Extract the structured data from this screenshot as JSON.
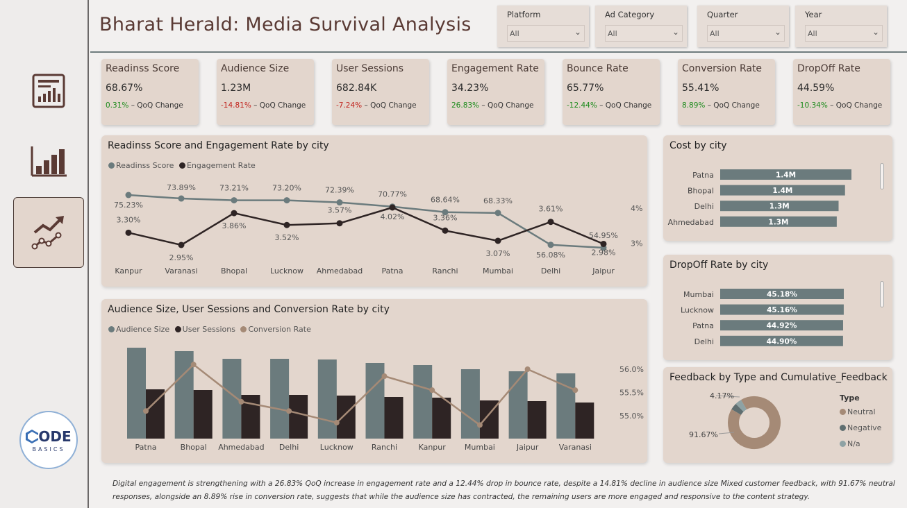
{
  "title": "Bharat Herald: Media Survival Analysis",
  "filters": [
    {
      "label": "Platform",
      "value": "All"
    },
    {
      "label": "Ad Category",
      "value": "All"
    },
    {
      "label": "Quarter",
      "value": "All"
    },
    {
      "label": "Year",
      "value": "All"
    }
  ],
  "kpis": [
    {
      "title": "Readinss Score",
      "value": "68.67%",
      "change": "0.31%",
      "change_label": " – QoQ Change",
      "trend": "pos"
    },
    {
      "title": "Audience Size",
      "value": "1.23M",
      "change": "-14.81%",
      "change_label": " – QoQ Change",
      "trend": "neg"
    },
    {
      "title": "User Sessions",
      "value": "682.84K",
      "change": "-7.24%",
      "change_label": " – QoQ Change",
      "trend": "neg"
    },
    {
      "title": "Engagement Rate",
      "value": "34.23%",
      "change": "26.83%",
      "change_label": " – QoQ Change",
      "trend": "pos"
    },
    {
      "title": "Bounce Rate",
      "value": "65.77%",
      "change": "-12.44%",
      "change_label": " – QoQ Change",
      "trend": "pos"
    },
    {
      "title": "Conversion Rate",
      "value": "55.41%",
      "change": "8.89%",
      "change_label": " – QoQ Change",
      "trend": "pos"
    },
    {
      "title": "DropOff Rate",
      "value": "44.59%",
      "change": "-10.34%",
      "change_label": " – QoQ Change",
      "trend": "pos"
    }
  ],
  "nav": [
    {
      "icon": "report-icon"
    },
    {
      "icon": "bar-chart-icon"
    },
    {
      "icon": "trend-chart-icon",
      "active": true
    }
  ],
  "logo": {
    "text_big": "ODE",
    "text_small": "BASICS"
  },
  "colors": {
    "teal": "#6b7b7d",
    "dark": "#2e2424",
    "tan": "#a58a76",
    "panel": "#e3d6cd"
  },
  "chart_data": [
    {
      "type": "line",
      "title": "Readinss Score and Engagement Rate by city",
      "categories": [
        "Kanpur",
        "Varanasi",
        "Bhopal",
        "Lucknow",
        "Ahmedabad",
        "Patna",
        "Ranchi",
        "Mumbai",
        "Delhi",
        "Jaipur"
      ],
      "series": [
        {
          "name": "Readinss Score",
          "values": [
            75.23,
            73.89,
            73.21,
            73.2,
            72.39,
            70.77,
            68.64,
            68.33,
            56.08,
            54.95
          ],
          "labels": [
            "75.23%",
            "73.89%",
            "73.21%",
            "73.20%",
            "72.39%",
            "70.77%",
            "68.64%",
            "68.33%",
            "56.08%",
            "54.95%"
          ]
        },
        {
          "name": "Engagement Rate",
          "values": [
            3.3,
            2.95,
            3.86,
            3.52,
            3.57,
            4.02,
            3.36,
            3.07,
            3.61,
            2.98
          ],
          "labels": [
            "3.30%",
            "2.95%",
            "3.86%",
            "3.52%",
            "3.57%",
            "4.02%",
            "3.36%",
            "3.07%",
            "3.61%",
            "2.98%"
          ],
          "axis": "right"
        }
      ],
      "y2_ticks": [
        "4%",
        "3%"
      ],
      "y2_tick_values": [
        4,
        3
      ]
    },
    {
      "type": "bar",
      "title": "Audience Size, User Sessions and Conversion Rate by city",
      "categories": [
        "Patna",
        "Bhopal",
        "Ahmedabad",
        "Delhi",
        "Lucknow",
        "Ranchi",
        "Kanpur",
        "Mumbai",
        "Jaipur",
        "Varanasi"
      ],
      "series": [
        {
          "name": "Audience Size",
          "values": [
            131000,
            126000,
            115000,
            115000,
            114000,
            109000,
            106000,
            100000,
            97000,
            94000
          ]
        },
        {
          "name": "User Sessions",
          "values": [
            71000,
            70000,
            63000,
            63000,
            62000,
            60000,
            59000,
            55000,
            54000,
            52000
          ]
        },
        {
          "name": "Conversion Rate",
          "values": [
            55.1,
            56.1,
            55.3,
            55.1,
            54.85,
            55.85,
            55.55,
            54.8,
            56.0,
            55.55
          ],
          "axis": "right"
        }
      ],
      "y2_ticks": [
        "56.0%",
        "55.5%",
        "55.0%"
      ],
      "y2_tick_values": [
        56.0,
        55.5,
        55.0
      ]
    },
    {
      "type": "bar",
      "orientation": "horizontal",
      "title": "Cost by city",
      "categories": [
        "Patna",
        "Bhopal",
        "Delhi",
        "Ahmedabad"
      ],
      "values": [
        1.43,
        1.36,
        1.29,
        1.27
      ],
      "labels": [
        "1.4M",
        "1.4M",
        "1.3M",
        "1.3M"
      ]
    },
    {
      "type": "bar",
      "orientation": "horizontal",
      "title": "DropOff Rate by city",
      "categories": [
        "Mumbai",
        "Lucknow",
        "Patna",
        "Delhi"
      ],
      "values": [
        45.18,
        45.16,
        44.92,
        44.9
      ],
      "labels": [
        "45.18%",
        "45.16%",
        "44.92%",
        "44.90%"
      ]
    },
    {
      "type": "pie",
      "title": "Feedback by Type and Cumulative_Feedback",
      "legend_title": "Type",
      "categories": [
        "Neutral",
        "Negative",
        "N/a"
      ],
      "values": [
        91.67,
        4.17,
        4.16
      ],
      "labels": [
        "91.67%",
        "4.17%",
        ""
      ]
    }
  ],
  "insight": "Digital engagement is strengthening with a 26.83% QoQ increase in engagement rate and a 12.44% drop in bounce rate, despite a 14.81% decline in audience size  Mixed customer feedback, with 91.67% neutral responses, alongside an 8.89% rise in conversion rate, suggests that while the audience size has contracted, the remaining users are more engaged and responsive to the content strategy."
}
